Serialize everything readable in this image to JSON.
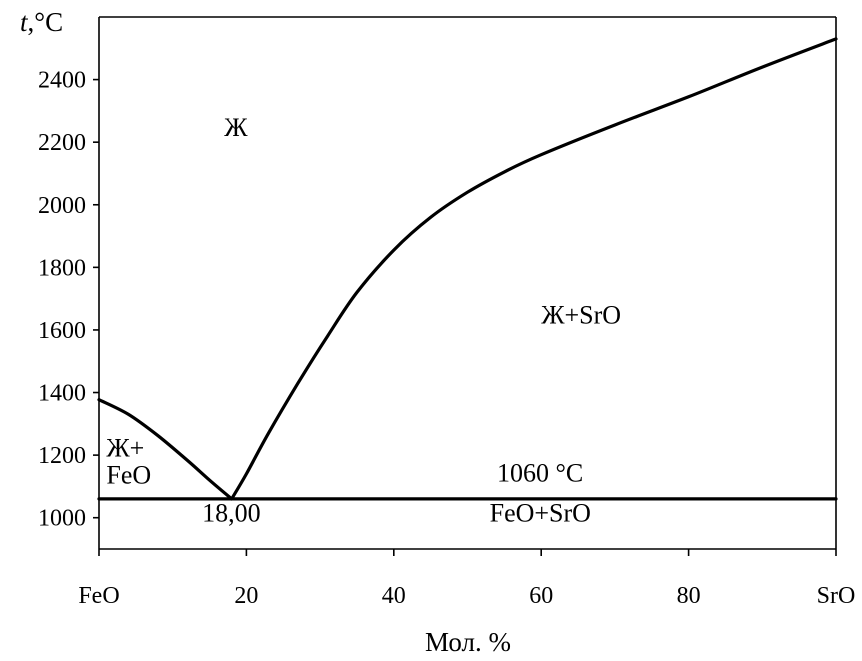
{
  "chart_data": {
    "type": "line",
    "title": "",
    "xlabel": "Мол. %",
    "ylabel_var": "t",
    "ylabel_unit": ",°C",
    "xlim": [
      0,
      100
    ],
    "ylim": [
      900,
      2600
    ],
    "x_ticks": [
      {
        "value": 0,
        "label": "FeO"
      },
      {
        "value": 20,
        "label": "20"
      },
      {
        "value": 40,
        "label": "40"
      },
      {
        "value": 60,
        "label": "60"
      },
      {
        "value": 80,
        "label": "80"
      },
      {
        "value": 100,
        "label": "SrO"
      }
    ],
    "y_ticks": [
      {
        "value": 1000,
        "label": "1000"
      },
      {
        "value": 1200,
        "label": "1200"
      },
      {
        "value": 1400,
        "label": "1400"
      },
      {
        "value": 1600,
        "label": "1600"
      },
      {
        "value": 1800,
        "label": "1800"
      },
      {
        "value": 2000,
        "label": "2000"
      },
      {
        "value": 2200,
        "label": "2200"
      },
      {
        "value": 2400,
        "label": "2400"
      }
    ],
    "grid": false,
    "series": [
      {
        "x": [
          0,
          4,
          8,
          12,
          15,
          18
        ],
        "y": [
          1377,
          1330,
          1262,
          1183,
          1120,
          1060
        ]
      },
      {
        "x": [
          18,
          20,
          23,
          27,
          31,
          35,
          40,
          45,
          50,
          55,
          60,
          70,
          80,
          90,
          100
        ],
        "y": [
          1060,
          1140,
          1270,
          1430,
          1580,
          1720,
          1855,
          1960,
          2040,
          2105,
          2160,
          2255,
          2345,
          2440,
          2530
        ]
      },
      {
        "x": [
          0,
          100
        ],
        "y": [
          1060,
          1060
        ]
      }
    ],
    "annotations": [
      {
        "text": "Ж",
        "x": 17,
        "y": 2220
      },
      {
        "text": "Ж+SrO",
        "x": 60,
        "y": 1620
      },
      {
        "text": "Ж+",
        "x": 1,
        "y": 1195
      },
      {
        "text": "FeO",
        "x": 1,
        "y": 1110
      },
      {
        "text": "1060 °C",
        "x": 54,
        "y": 1115
      },
      {
        "text": "18,00",
        "x": 14,
        "y": 988
      },
      {
        "text": "FeO+SrO",
        "x": 53,
        "y": 988
      }
    ]
  }
}
